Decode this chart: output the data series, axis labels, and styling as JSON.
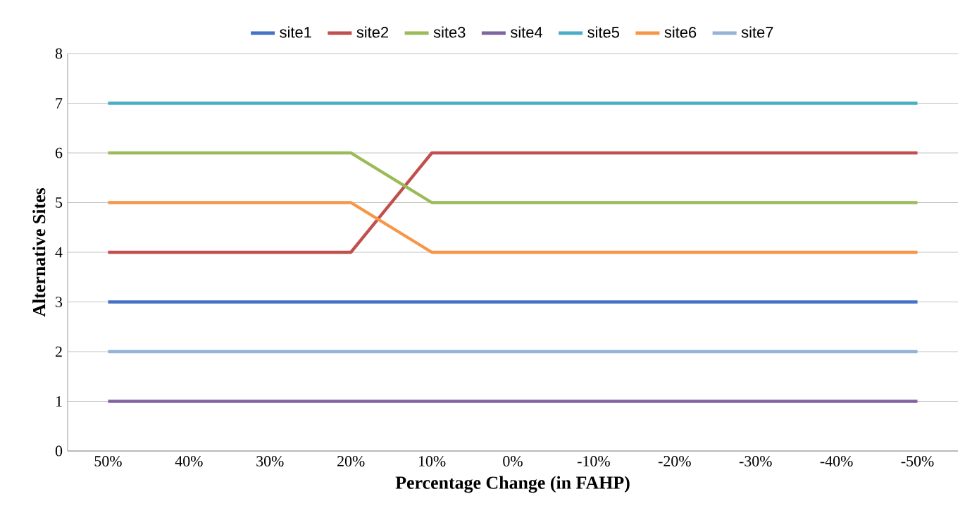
{
  "chart_data": {
    "type": "line",
    "xlabel": "Percentage Change (in FAHP)",
    "ylabel": "Alternative Sites",
    "categories": [
      "50%",
      "40%",
      "30%",
      "20%",
      "10%",
      "0%",
      "-10%",
      "-20%",
      "-30%",
      "-40%",
      "-50%"
    ],
    "ylim": [
      0,
      8
    ],
    "yticks": [
      0,
      1,
      2,
      3,
      4,
      5,
      6,
      7,
      8
    ],
    "grid": "y",
    "legend": "top",
    "marker": "none",
    "line_style": "solid",
    "series": [
      {
        "name": "site1",
        "color": "#4472c4",
        "values": [
          3,
          3,
          3,
          3,
          3,
          3,
          3,
          3,
          3,
          3,
          3
        ]
      },
      {
        "name": "site2",
        "color": "#c0504d",
        "values": [
          4,
          4,
          4,
          4,
          6,
          6,
          6,
          6,
          6,
          6,
          6
        ]
      },
      {
        "name": "site3",
        "color": "#9bbb59",
        "values": [
          6,
          6,
          6,
          6,
          5,
          5,
          5,
          5,
          5,
          5,
          5
        ]
      },
      {
        "name": "site4",
        "color": "#8064a2",
        "values": [
          1,
          1,
          1,
          1,
          1,
          1,
          1,
          1,
          1,
          1,
          1
        ]
      },
      {
        "name": "site5",
        "color": "#4bacc6",
        "values": [
          7,
          7,
          7,
          7,
          7,
          7,
          7,
          7,
          7,
          7,
          7
        ]
      },
      {
        "name": "site6",
        "color": "#f79646",
        "values": [
          5,
          5,
          5,
          5,
          4,
          4,
          4,
          4,
          4,
          4,
          4
        ]
      },
      {
        "name": "site7",
        "color": "#95b3d7",
        "values": [
          2,
          2,
          2,
          2,
          2,
          2,
          2,
          2,
          2,
          2,
          2
        ]
      }
    ]
  }
}
